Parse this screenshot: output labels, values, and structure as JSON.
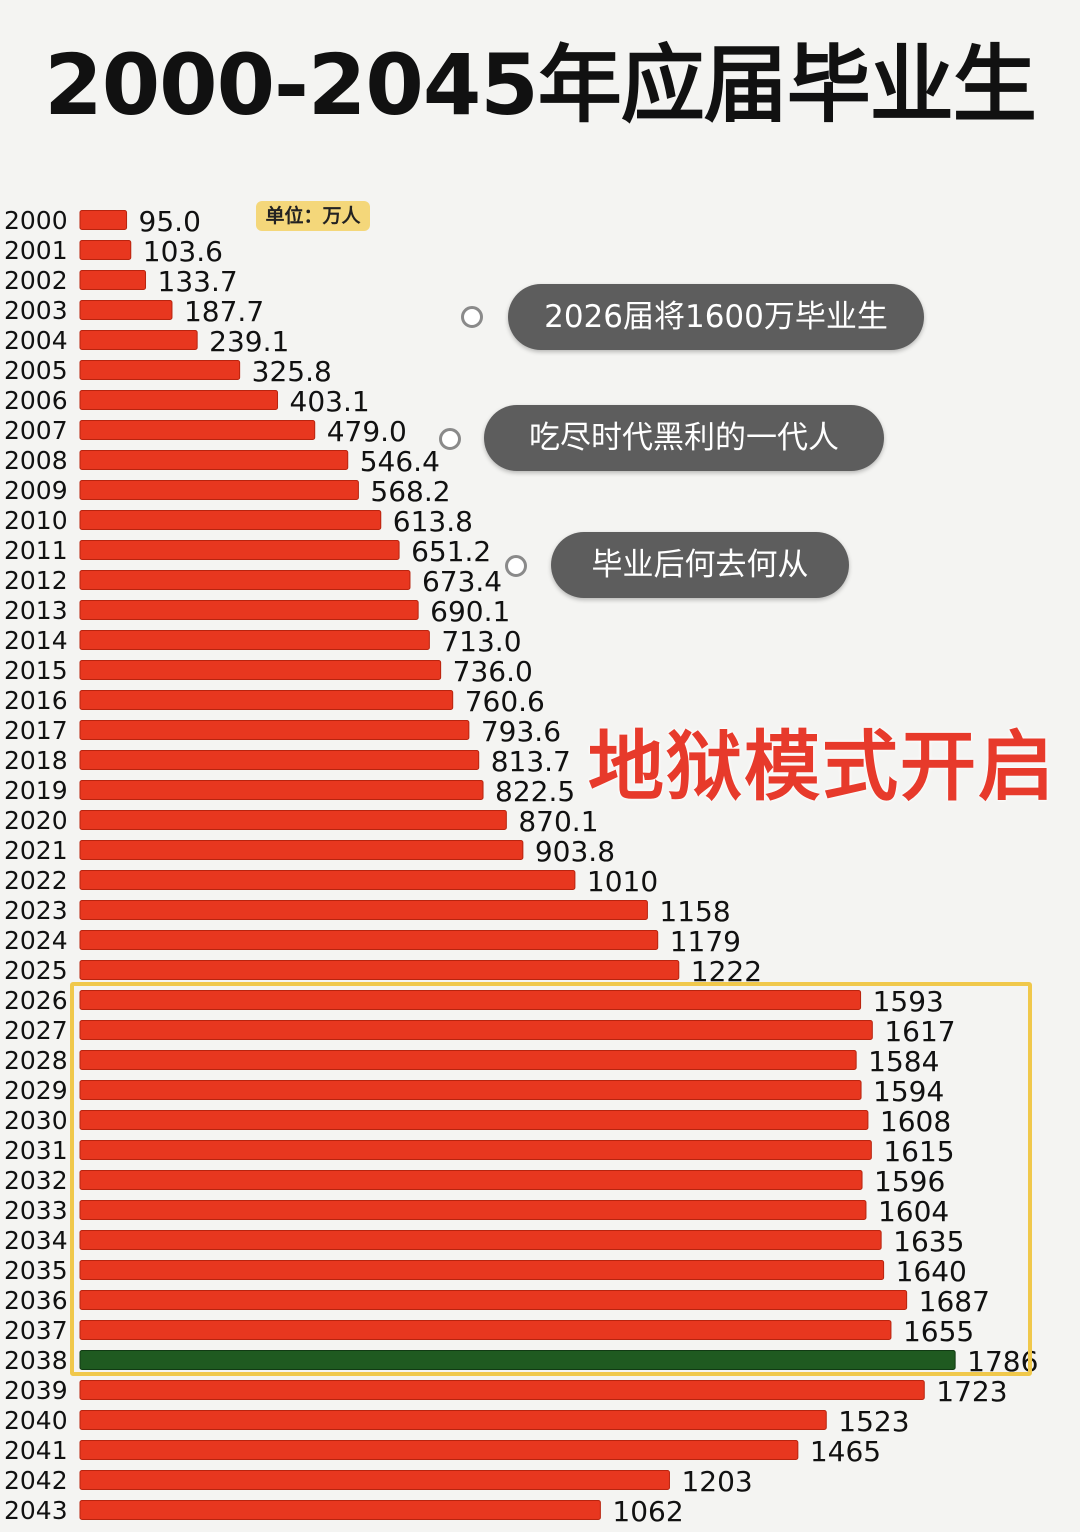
{
  "title": "2000-2045年应届毕业生",
  "unit_label": "单位：万人",
  "callouts": [
    "2026届将1600万毕业生",
    "吃尽时代黑利的一代人",
    "毕业后何去何从"
  ],
  "headline": "地狱模式开启",
  "colors": {
    "bar": "#e8371f",
    "bar_highlight": "#1f5a20",
    "box": "#f0c84b",
    "headline": "#e73a2b",
    "bubble": "#5d5d5d"
  },
  "chart_data": {
    "type": "bar",
    "orientation": "horizontal",
    "unit": "万人",
    "categories": [
      "2000",
      "2001",
      "2002",
      "2003",
      "2004",
      "2005",
      "2006",
      "2007",
      "2008",
      "2009",
      "2010",
      "2011",
      "2012",
      "2013",
      "2014",
      "2015",
      "2016",
      "2017",
      "2018",
      "2019",
      "2020",
      "2021",
      "2022",
      "2023",
      "2024",
      "2025",
      "2026",
      "2027",
      "2028",
      "2029",
      "2030",
      "2031",
      "2032",
      "2033",
      "2034",
      "2035",
      "2036",
      "2037",
      "2038",
      "2039",
      "2040",
      "2041",
      "2042",
      "2043"
    ],
    "values": [
      95.0,
      103.6,
      133.7,
      187.7,
      239.1,
      325.8,
      403.1,
      479.0,
      546.4,
      568.2,
      613.8,
      651.2,
      673.4,
      690.1,
      713.0,
      736.0,
      760.6,
      793.6,
      813.7,
      822.5,
      870.1,
      903.8,
      1010,
      1158,
      1179,
      1222,
      1593,
      1617,
      1584,
      1594,
      1608,
      1615,
      1596,
      1604,
      1635,
      1640,
      1687,
      1655,
      1786,
      1723,
      1523,
      1465,
      1203,
      1062
    ],
    "labels": [
      "95.0",
      "103.6",
      "133.7",
      "187.7",
      "239.1",
      "325.8",
      "403.1",
      "479.0",
      "546.4",
      "568.2",
      "613.8",
      "651.2",
      "673.4",
      "690.1",
      "713.0",
      "736.0",
      "760.6",
      "793.6",
      "813.7",
      "822.5",
      "870.1",
      "903.8",
      "1010",
      "1158",
      "1179",
      "1222",
      "1593",
      "1617",
      "1584",
      "1594",
      "1608",
      "1615",
      "1596",
      "1604",
      "1635",
      "1640",
      "1687",
      "1655",
      "1786",
      "1723",
      "1523",
      "1465",
      "1203",
      "1062"
    ],
    "highlight_category": "2038",
    "boxed_range": [
      "2026",
      "2037"
    ],
    "grid": false
  }
}
